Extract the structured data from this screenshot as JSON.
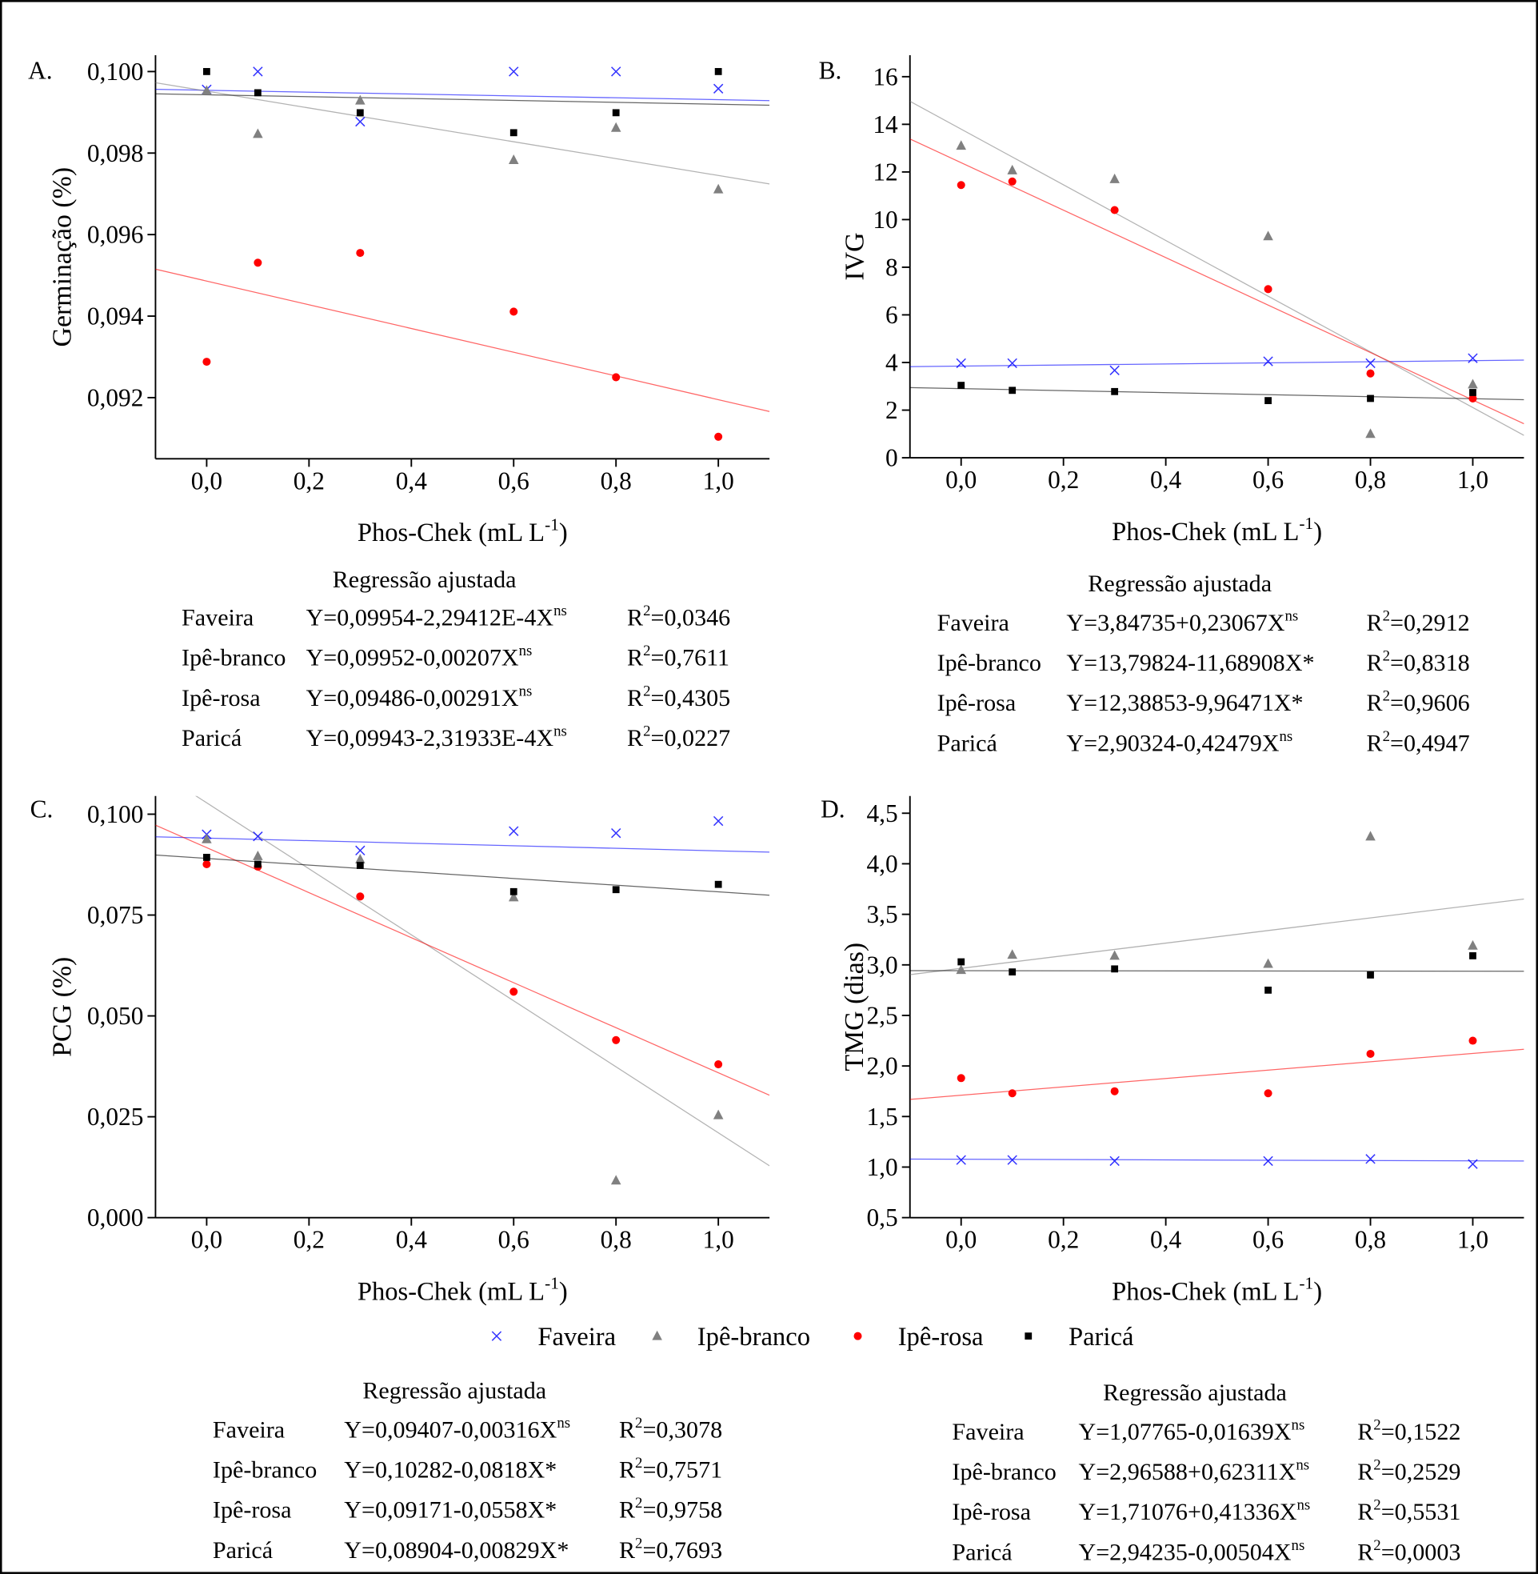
{
  "chart_data": [
    {
      "type": "scatter",
      "panel_label": "A.",
      "y_label": "Germinação (%)",
      "x_label": "Phos-Chek (mL L",
      "x_label_exponent": "-1",
      "x_label_end": ")",
      "x": [
        0,
        0.1,
        0.3,
        0.6,
        0.8,
        1.0
      ],
      "xlim": [
        -0.1,
        1.1
      ],
      "ylim": [
        0.0905,
        0.1004
      ],
      "xticks": [
        {
          "value": 0,
          "label": "0,0"
        },
        {
          "value": 0.2,
          "label": "0,2"
        },
        {
          "value": 0.4,
          "label": "0,4"
        },
        {
          "value": 0.6,
          "label": "0,6"
        },
        {
          "value": 0.8,
          "label": "0,8"
        },
        {
          "value": 1.0,
          "label": "1,0"
        }
      ],
      "yticks": [
        {
          "value": 0.092,
          "label": "0,092"
        },
        {
          "value": 0.094,
          "label": "0,094"
        },
        {
          "value": 0.096,
          "label": "0,096"
        },
        {
          "value": 0.098,
          "label": "0,098"
        },
        {
          "value": 0.1,
          "label": "0,100"
        }
      ],
      "regression_title": "Regressão ajustada",
      "r2_symbol": "R",
      "r2_exponent": "2",
      "series": [
        {
          "name": "Faveira",
          "color": "#0000ff",
          "marker": "x",
          "values": [
            0.09956,
            0.1,
            0.09877,
            0.1,
            0.1,
            0.09958
          ],
          "intercept": 0.09954,
          "slope": -0.000229412,
          "equation": "Y=0,09954-2,29412E-4X",
          "significance": "ns",
          "r2": "=0,0346"
        },
        {
          "name": "Ipê-branco",
          "color": "#808080",
          "marker": "triangle",
          "values": [
            0.09953,
            0.09847,
            0.09929,
            0.09783,
            0.09862,
            0.09711
          ],
          "intercept": 0.09952,
          "slope": -0.00207,
          "equation": "Y=0,09952-0,00207X",
          "significance": "ns",
          "r2": "=0,7611"
        },
        {
          "name": "Ipê-rosa",
          "color": "#ff0000",
          "marker": "circle",
          "values": [
            0.09288,
            0.09531,
            0.09555,
            0.09411,
            0.0925,
            0.09104
          ],
          "intercept": 0.09486,
          "slope": -0.00291,
          "equation": "Y=0,09486-0,00291X",
          "significance": "ns",
          "r2": "=0,4305"
        },
        {
          "name": "Paricá",
          "color": "#000000",
          "marker": "square",
          "values": [
            0.1,
            0.09948,
            0.09899,
            0.0985,
            0.09899,
            0.1
          ],
          "intercept": 0.09943,
          "slope": -0.000231933,
          "equation": "Y=0,09943-2,31933E-4X",
          "significance": "ns",
          "r2": "=0,0227"
        }
      ]
    },
    {
      "type": "scatter",
      "panel_label": "B.",
      "y_label": "IVG",
      "x_label": "Phos-Chek (mL L",
      "x_label_exponent": "-1",
      "x_label_end": ")",
      "x": [
        0,
        0.1,
        0.3,
        0.6,
        0.8,
        1.0
      ],
      "xlim": [
        -0.1,
        1.1
      ],
      "ylim": [
        0,
        16.9
      ],
      "xticks": [
        {
          "value": 0,
          "label": "0,0"
        },
        {
          "value": 0.2,
          "label": "0,2"
        },
        {
          "value": 0.4,
          "label": "0,4"
        },
        {
          "value": 0.6,
          "label": "0,6"
        },
        {
          "value": 0.8,
          "label": "0,8"
        },
        {
          "value": 1.0,
          "label": "1,0"
        }
      ],
      "yticks": [
        0,
        2,
        4,
        6,
        8,
        10,
        12,
        14,
        16
      ],
      "regression_title": "Regressão ajustada",
      "r2_symbol": "R",
      "r2_exponent": "2",
      "series": [
        {
          "name": "Faveira",
          "color": "#0000ff",
          "marker": "x",
          "values": [
            3.97,
            3.97,
            3.67,
            4.05,
            3.97,
            4.18
          ],
          "intercept": 3.84735,
          "slope": 0.23067,
          "equation": "Y=3,84735+0,23067X",
          "significance": "ns",
          "r2": "=0,2912"
        },
        {
          "name": "Ipê-branco",
          "color": "#808080",
          "marker": "triangle",
          "values": [
            13.1,
            12.07,
            11.7,
            9.3,
            1.0,
            3.08
          ],
          "intercept": 13.79824,
          "slope": -11.68908,
          "equation": "Y=13,79824-11,68908X*",
          "r2": "=0,8318"
        },
        {
          "name": "Ipê-rosa",
          "color": "#ff0000",
          "marker": "circle",
          "values": [
            11.45,
            11.6,
            10.4,
            7.08,
            3.54,
            2.49
          ],
          "intercept": 12.38853,
          "slope": -9.96471,
          "equation": "Y=12,38853-9,96471X*",
          "r2": "=0,9606"
        },
        {
          "name": "Paricá",
          "color": "#000000",
          "marker": "square",
          "values": [
            3.04,
            2.83,
            2.78,
            2.4,
            2.49,
            2.74
          ],
          "intercept": 2.90324,
          "slope": -0.42479,
          "equation": "Y=2,90324-0,42479X",
          "significance": "ns",
          "r2": "=0,4947"
        }
      ]
    },
    {
      "type": "scatter",
      "panel_label": "C.",
      "y_label": "PCG (%)",
      "x_label": "Phos-Chek (mL L",
      "x_label_exponent": "-1",
      "x_label_end": ")",
      "x": [
        0,
        0.1,
        0.3,
        0.6,
        0.8,
        1.0
      ],
      "xlim": [
        -0.1,
        1.1
      ],
      "ylim": [
        0,
        0.1045
      ],
      "xticks": [
        {
          "value": 0,
          "label": "0,0"
        },
        {
          "value": 0.2,
          "label": "0,2"
        },
        {
          "value": 0.4,
          "label": "0,4"
        },
        {
          "value": 0.6,
          "label": "0,6"
        },
        {
          "value": 0.8,
          "label": "0,8"
        },
        {
          "value": 1.0,
          "label": "1,0"
        }
      ],
      "yticks": [
        {
          "value": 0,
          "label": "0,000"
        },
        {
          "value": 0.025,
          "label": "0,025"
        },
        {
          "value": 0.05,
          "label": "0,050"
        },
        {
          "value": 0.075,
          "label": "0,075"
        },
        {
          "value": 0.1,
          "label": "0,100"
        }
      ],
      "regression_title": "Regressão ajustada",
      "r2_symbol": "R",
      "r2_exponent": "2",
      "series": [
        {
          "name": "Faveira",
          "color": "#0000ff",
          "marker": "x",
          "values": [
            0.095,
            0.0945,
            0.091,
            0.0958,
            0.0953,
            0.0983
          ],
          "intercept": 0.09407,
          "slope": -0.00316,
          "equation": "Y=0,09407-0,00316X",
          "significance": "ns",
          "r2": "=0,3078"
        },
        {
          "name": "Ipê-branco",
          "color": "#808080",
          "marker": "triangle",
          "values": [
            0.0938,
            0.0896,
            0.0888,
            0.0794,
            0.0092,
            0.0254
          ],
          "intercept": 0.10282,
          "slope": -0.0818,
          "equation": "Y=0,10282-0,0818X*",
          "r2": "=0,7571"
        },
        {
          "name": "Ipê-rosa",
          "color": "#ff0000",
          "marker": "circle",
          "values": [
            0.0876,
            0.087,
            0.0796,
            0.056,
            0.044,
            0.038
          ],
          "intercept": 0.09171,
          "slope": -0.0558,
          "equation": "Y=0,09171-0,0558X*",
          "r2": "=0,9758"
        },
        {
          "name": "Paricá",
          "color": "#000000",
          "marker": "square",
          "values": [
            0.0893,
            0.0876,
            0.0873,
            0.0808,
            0.0813,
            0.0826
          ],
          "intercept": 0.08904,
          "slope": -0.00829,
          "equation": "Y=0,08904-0,00829X*",
          "r2": "=0,7693"
        }
      ]
    },
    {
      "type": "scatter",
      "panel_label": "D.",
      "y_label": "TMG (dias)",
      "x_label": "Phos-Chek (mL L",
      "x_label_exponent": "-1",
      "x_label_end": ")",
      "x": [
        0,
        0.1,
        0.3,
        0.6,
        0.8,
        1.0
      ],
      "xlim": [
        -0.1,
        1.1
      ],
      "ylim": [
        0.5,
        4.67
      ],
      "xticks": [
        {
          "value": 0,
          "label": "0,0"
        },
        {
          "value": 0.2,
          "label": "0,2"
        },
        {
          "value": 0.4,
          "label": "0,4"
        },
        {
          "value": 0.6,
          "label": "0,6"
        },
        {
          "value": 0.8,
          "label": "0,8"
        },
        {
          "value": 1.0,
          "label": "1,0"
        }
      ],
      "yticks": [
        {
          "value": 0.5,
          "label": "0,5"
        },
        {
          "value": 1.0,
          "label": "1,0"
        },
        {
          "value": 1.5,
          "label": "1,5"
        },
        {
          "value": 2.0,
          "label": "2,0"
        },
        {
          "value": 2.5,
          "label": "2,5"
        },
        {
          "value": 3.0,
          "label": "3,0"
        },
        {
          "value": 3.5,
          "label": "3,5"
        },
        {
          "value": 4.0,
          "label": "4,0"
        },
        {
          "value": 4.5,
          "label": "4,5"
        }
      ],
      "regression_title": "Regressão ajustada",
      "r2_symbol": "R",
      "r2_exponent": "2",
      "series": [
        {
          "name": "Faveira",
          "color": "#0000ff",
          "marker": "x",
          "values": [
            1.07,
            1.07,
            1.06,
            1.06,
            1.08,
            1.03
          ],
          "intercept": 1.07765,
          "slope": -0.01639,
          "equation": "Y=1,07765-0,01639X",
          "significance": "ns",
          "r2": "=0,1522"
        },
        {
          "name": "Ipê-branco",
          "color": "#808080",
          "marker": "triangle",
          "values": [
            2.95,
            3.1,
            3.09,
            3.01,
            4.27,
            3.19
          ],
          "intercept": 2.96588,
          "slope": 0.62311,
          "equation": "Y=2,96588+0,62311X",
          "significance": "ns",
          "r2": "=0,2529"
        },
        {
          "name": "Ipê-rosa",
          "color": "#ff0000",
          "marker": "circle",
          "values": [
            1.88,
            1.73,
            1.75,
            1.73,
            2.12,
            2.25
          ],
          "intercept": 1.71076,
          "slope": 0.41336,
          "equation": "Y=1,71076+0,41336X",
          "significance": "ns",
          "r2": "=0,5531"
        },
        {
          "name": "Paricá",
          "color": "#000000",
          "marker": "square",
          "values": [
            3.03,
            2.93,
            2.96,
            2.75,
            2.9,
            3.09
          ],
          "intercept": 2.94235,
          "slope": -0.00504,
          "equation": "Y=2,94235-0,00504X",
          "significance": "ns",
          "r2": "=0,0003"
        }
      ]
    }
  ]
}
